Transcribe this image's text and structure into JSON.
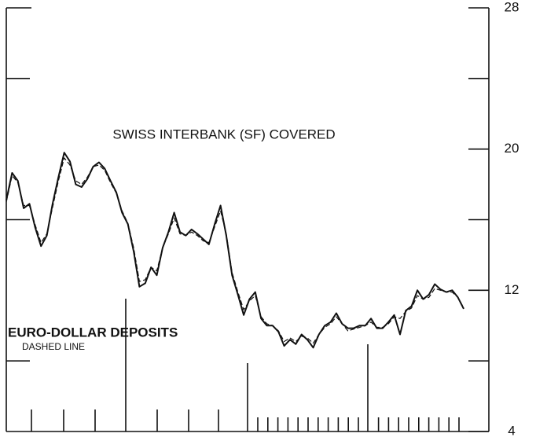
{
  "chart_data": {
    "type": "line",
    "annotations": [
      "SWISS INTERBANK (SF) COVERED",
      "EURO-DOLLAR DEPOSITS",
      "DASHED LINE"
    ],
    "series": [
      {
        "name": "SWISS INTERBANK (SF) COVERED",
        "color": "#111111",
        "style": "solid",
        "values": [
          17.1,
          18.65,
          18.2,
          16.65,
          16.9,
          15.55,
          14.5,
          15.1,
          16.9,
          18.4,
          19.8,
          19.3,
          18.0,
          17.85,
          18.3,
          19.0,
          19.25,
          18.9,
          18.2,
          17.55,
          16.4,
          15.75,
          14.2,
          12.2,
          12.4,
          13.3,
          12.85,
          14.4,
          15.3,
          16.4,
          15.3,
          15.1,
          15.45,
          15.2,
          14.9,
          14.6,
          15.75,
          16.8,
          15.1,
          12.85,
          11.75,
          10.6,
          11.5,
          11.9,
          10.4,
          10.0,
          10.0,
          9.65,
          8.85,
          9.2,
          8.95,
          9.5,
          9.2,
          8.75,
          9.5,
          10.0,
          10.2,
          10.7,
          10.1,
          9.85,
          9.85,
          10.0,
          10.0,
          10.4,
          9.85,
          9.85,
          10.2,
          10.6,
          9.5,
          10.85,
          11.1,
          12.0,
          11.5,
          11.75,
          12.35,
          12.05,
          11.9,
          12.0,
          11.6,
          10.95
        ]
      },
      {
        "name": "EURO-DOLLAR DEPOSITS",
        "color": "#111111",
        "style": "dashed",
        "values": [
          17.0,
          18.5,
          18.1,
          16.8,
          16.8,
          15.7,
          14.7,
          15.2,
          16.7,
          18.2,
          19.5,
          19.1,
          18.2,
          18.0,
          18.4,
          19.0,
          19.1,
          18.8,
          18.1,
          17.5,
          16.5,
          15.8,
          14.4,
          12.5,
          12.6,
          13.3,
          13.1,
          14.4,
          15.2,
          16.1,
          15.2,
          15.1,
          15.3,
          15.1,
          14.8,
          14.7,
          15.6,
          16.5,
          15.2,
          13.0,
          11.9,
          10.9,
          11.4,
          11.7,
          10.5,
          10.1,
          10.0,
          9.7,
          9.1,
          9.3,
          9.1,
          9.4,
          9.3,
          9.0,
          9.5,
          9.9,
          10.1,
          10.5,
          10.1,
          9.7,
          9.8,
          9.9,
          10.0,
          10.2,
          9.9,
          9.9,
          10.1,
          10.5,
          10.4,
          10.8,
          11.0,
          11.7,
          11.5,
          11.6,
          12.1,
          12.0,
          11.9,
          11.9,
          11.6,
          11.0
        ]
      }
    ],
    "ylim": [
      4,
      28
    ],
    "yticks": [
      4,
      12,
      20,
      28
    ],
    "minor_yticks": [
      8,
      16,
      24
    ]
  }
}
